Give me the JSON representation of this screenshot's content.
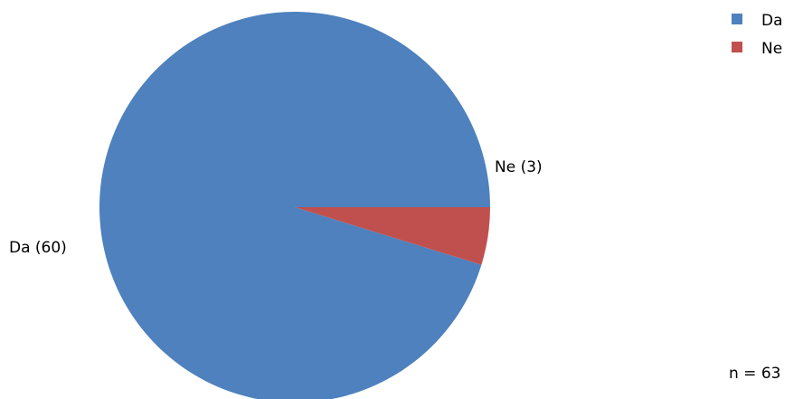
{
  "chart_data": {
    "type": "pie",
    "slices": [
      {
        "label": "Da",
        "value": 60,
        "color": "#4e81bd",
        "data_label": "Da (60)"
      },
      {
        "label": "Ne",
        "value": 3,
        "color": "#c0504e",
        "data_label": "Ne (3)"
      }
    ],
    "legend": {
      "placement": "top-right",
      "entries": [
        {
          "label": "Da",
          "color": "#4e81bd"
        },
        {
          "label": "Ne",
          "color": "#c0504e"
        }
      ]
    },
    "note": "n = 63"
  }
}
